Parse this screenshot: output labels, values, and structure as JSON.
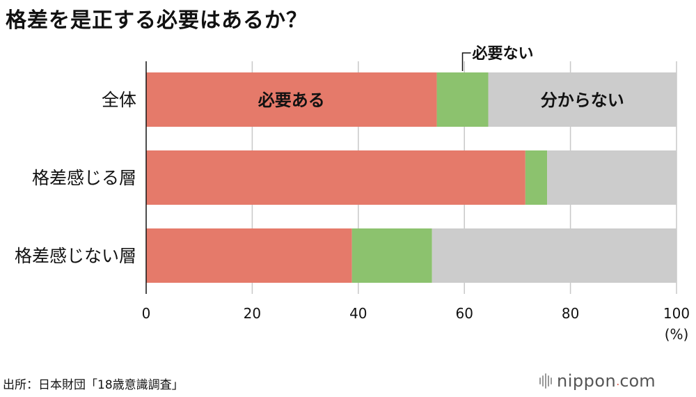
{
  "title": "格差を是正する必要はあるか？",
  "source": "出所：日本財団「18歳意識調査」",
  "logo": {
    "word": "nippon",
    "dot": ".",
    "tld": "com"
  },
  "chart_data": {
    "type": "bar",
    "orientation": "horizontal",
    "stacked": true,
    "categories": [
      "全体",
      "格差感じる層",
      "格差感じない層"
    ],
    "series": [
      {
        "name": "必要ある",
        "color": "#e57a6a",
        "values": [
          54.8,
          71.5,
          38.8
        ]
      },
      {
        "name": "必要ない",
        "color": "#8cc26e",
        "values": [
          9.7,
          4.1,
          15.1
        ]
      },
      {
        "name": "分からない",
        "color": "#cccccc",
        "values": [
          35.5,
          24.4,
          46.1
        ]
      }
    ],
    "xlim": [
      0,
      100
    ],
    "xticks": [
      0,
      20,
      40,
      60,
      80,
      100
    ],
    "xunit": "(%)",
    "grid": true
  }
}
